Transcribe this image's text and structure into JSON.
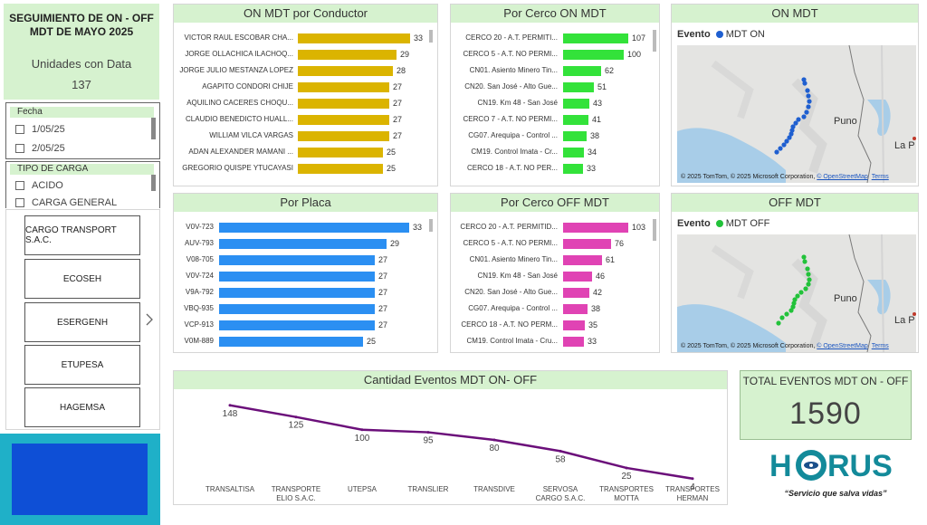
{
  "header": {
    "title": "SEGUIMIENTO DE ON - OFF MDT DE MAYO 2025",
    "units_label": "Unidades con Data",
    "units_value": "137"
  },
  "slicers": {
    "fecha": {
      "title": "Fecha",
      "options": [
        "1/05/25",
        "2/05/25"
      ]
    },
    "tipo_carga": {
      "title": "TIPO DE CARGA",
      "options": [
        "ACIDO",
        "CARGA GENERAL"
      ]
    }
  },
  "companies": [
    "CARGO TRANSPORT S.A.C.",
    "ECOSEH",
    "ESERGENH",
    "ETUPESA",
    "HAGEMSA"
  ],
  "colors": {
    "header_bg": "#d6f2cf",
    "conductor_bar": "#dbb400",
    "cerco_on_bar": "#33e23a",
    "placa_bar": "#2b8ff2",
    "cerco_off_bar": "#e043b4",
    "map_on_dot": "#1f5fd0",
    "map_off_dot": "#22c23a",
    "line": "#6b0f7a"
  },
  "conductor": {
    "title": "ON MDT por Conductor",
    "rows": [
      {
        "label": "VICTOR RAUL ESCOBAR CHA...",
        "value": 33
      },
      {
        "label": "JORGE OLLACHICA ILACHOQ...",
        "value": 29
      },
      {
        "label": "JORGE JULIO MESTANZA LOPEZ",
        "value": 28
      },
      {
        "label": "AGAPITO CONDORI CHIJE",
        "value": 27
      },
      {
        "label": "AQUILINO CACERES CHOQU...",
        "value": 27
      },
      {
        "label": "CLAUDIO BENEDICTO HUALL...",
        "value": 27
      },
      {
        "label": "WILLIAM VILCA VARGAS",
        "value": 27
      },
      {
        "label": "ADAN ALEXANDER MAMANI ...",
        "value": 25
      },
      {
        "label": "GREGORIO QUISPE YTUCAYASI",
        "value": 25
      }
    ]
  },
  "cerco_on": {
    "title": "Por Cerco ON MDT",
    "rows": [
      {
        "label": "CERCO 20 - A.T. PERMITI...",
        "value": 107
      },
      {
        "label": "CERCO 5 - A.T. NO PERMI...",
        "value": 100
      },
      {
        "label": "CN01. Asiento Minero Tin...",
        "value": 62
      },
      {
        "label": "CN20. San José - Alto Gue...",
        "value": 51
      },
      {
        "label": "CN19. Km 48 - San José",
        "value": 43
      },
      {
        "label": "CERCO 7 - A.T. NO PERMI...",
        "value": 41
      },
      {
        "label": "CG07. Arequipa - Control ...",
        "value": 38
      },
      {
        "label": "CM19. Control Imata - Cr...",
        "value": 34
      },
      {
        "label": "CERCO 18 - A.T. NO PER...",
        "value": 33
      }
    ]
  },
  "map_on": {
    "title": "ON MDT",
    "legend_label": "Evento",
    "legend_item": "MDT ON",
    "place1": "Puno",
    "place2": "La P",
    "attribution": "© 2025 TomTom, © 2025 Microsoft Corporation,",
    "osm": "© OpenStreetMap",
    "terms": "Terms"
  },
  "placa": {
    "title": "Por Placa",
    "rows": [
      {
        "label": "V0V-723",
        "value": 33
      },
      {
        "label": "AUV-793",
        "value": 29
      },
      {
        "label": "V08-705",
        "value": 27
      },
      {
        "label": "V0V-724",
        "value": 27
      },
      {
        "label": "V9A-792",
        "value": 27
      },
      {
        "label": "VBQ-935",
        "value": 27
      },
      {
        "label": "VCP-913",
        "value": 27
      },
      {
        "label": "V0M-889",
        "value": 25
      }
    ]
  },
  "cerco_off": {
    "title": "Por Cerco OFF MDT",
    "rows": [
      {
        "label": "CERCO 20 - A.T. PERMITID...",
        "value": 103
      },
      {
        "label": "CERCO 5 - A.T. NO PERMI...",
        "value": 76
      },
      {
        "label": "CN01. Asiento Minero Tin...",
        "value": 61
      },
      {
        "label": "CN19. Km 48 - San José",
        "value": 46
      },
      {
        "label": "CN20. San José - Alto Gue...",
        "value": 42
      },
      {
        "label": "CG07. Arequipa - Control ...",
        "value": 38
      },
      {
        "label": "CERCO 18 - A.T. NO PERM...",
        "value": 35
      },
      {
        "label": "CM19. Control Imata - Cru...",
        "value": 33
      }
    ]
  },
  "map_off": {
    "title": "OFF MDT",
    "legend_label": "Evento",
    "legend_item": "MDT OFF",
    "place1": "Puno",
    "place2": "La P",
    "attribution": "© 2025 TomTom, © 2025 Microsoft Corporation,",
    "osm": "© OpenStreetMap",
    "terms": "Terms"
  },
  "chart_data": {
    "type": "line",
    "title": "Cantidad Eventos MDT ON- OFF",
    "categories": [
      "TRANSALTISA",
      "TRANSPORTE ELIO S.A.C.",
      "UTEPSA",
      "TRANSLIER",
      "TRANSDIVE",
      "SERVOSA CARGO S.A.C.",
      "TRANSPORTES MOTTA",
      "TRANSPORTES HERMAN"
    ],
    "category_lines": [
      [
        "TRANSALTISA"
      ],
      [
        "TRANSPORTE",
        "ELIO S.A.C."
      ],
      [
        "UTEPSA"
      ],
      [
        "TRANSLIER"
      ],
      [
        "TRANSDIVE"
      ],
      [
        "SERVOSA",
        "CARGO S.A.C."
      ],
      [
        "TRANSPORTES",
        "MOTTA"
      ],
      [
        "TRANSPORTES",
        "HERMAN"
      ]
    ],
    "values": [
      148,
      125,
      100,
      95,
      80,
      58,
      25,
      4
    ],
    "ylim": [
      0,
      160
    ]
  },
  "total": {
    "title": "TOTAL EVENTOS MDT ON - OFF",
    "value": "1590"
  },
  "logo": {
    "text_left": "H",
    "text_right": "RUS",
    "slogan": "“Servicio que salva vidas”"
  }
}
